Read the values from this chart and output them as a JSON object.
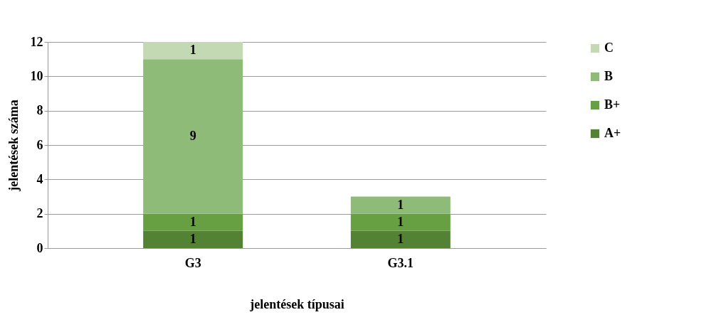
{
  "chart_data": {
    "type": "bar",
    "stacked": true,
    "xlabel": "jelentések típusai",
    "ylabel": "jelentések száma",
    "categories": [
      "G3",
      "G3.1"
    ],
    "series": [
      {
        "name": "A+",
        "color": "#548235",
        "values": [
          1,
          1
        ]
      },
      {
        "name": "B+",
        "color": "#67a042",
        "values": [
          1,
          1
        ]
      },
      {
        "name": "B",
        "color": "#8fbb78",
        "values": [
          9,
          1
        ]
      },
      {
        "name": "C",
        "color": "#c3d9b3",
        "values": [
          1,
          null
        ]
      }
    ],
    "ylim": [
      0,
      12
    ],
    "yticks": [
      0,
      2,
      4,
      6,
      8,
      10,
      12
    ],
    "grid": "y",
    "legend": "right",
    "data_labels": true
  }
}
